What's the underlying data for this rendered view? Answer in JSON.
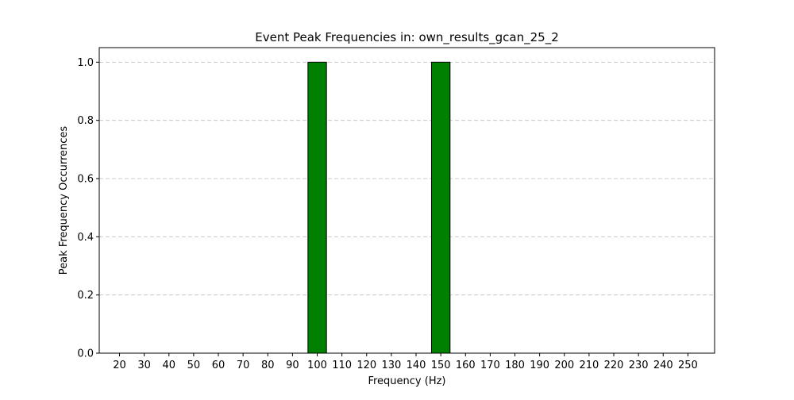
{
  "chart_data": {
    "type": "bar",
    "title": "Event Peak Frequencies in: own_results_gcan_25_2",
    "xlabel": "Frequency (Hz)",
    "ylabel": "Peak Frequency Occurrences",
    "x": [
      20,
      30,
      40,
      50,
      60,
      70,
      80,
      90,
      100,
      110,
      120,
      130,
      140,
      150,
      160,
      170,
      180,
      190,
      200,
      210,
      220,
      230,
      240,
      250
    ],
    "values": [
      0,
      0,
      0,
      0,
      0,
      0,
      0,
      0,
      1,
      0,
      0,
      0,
      0,
      1,
      0,
      0,
      0,
      0,
      0,
      0,
      0,
      0,
      0,
      0
    ],
    "bin_width": 7.5,
    "xticks": [
      "20",
      "30",
      "40",
      "50",
      "60",
      "70",
      "80",
      "90",
      "100",
      "110",
      "120",
      "130",
      "140",
      "150",
      "160",
      "170",
      "180",
      "190",
      "200",
      "210",
      "220",
      "230",
      "240",
      "250"
    ],
    "yticks": [
      "0.0",
      "0.2",
      "0.4",
      "0.6",
      "0.8",
      "1.0"
    ],
    "xlim": [
      11.8,
      260.8
    ],
    "ylim": [
      0,
      1.05
    ],
    "grid": "y-dashed",
    "bar_color": "#008000",
    "bar_edge_color": "#000000",
    "grid_color": "#c8c8c8"
  }
}
